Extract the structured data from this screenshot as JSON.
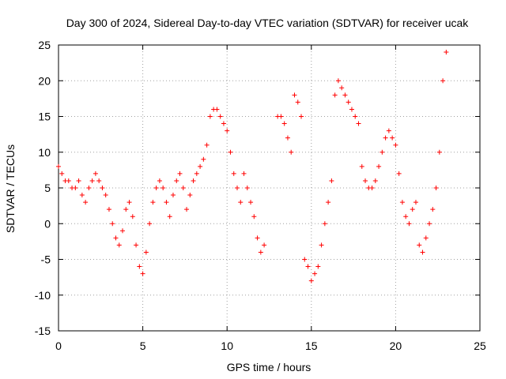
{
  "chart_data": {
    "type": "scatter",
    "title": "Day 300 of 2024, Sidereal Day-to-day VTEC variation (SDTVAR) for receiver ucak",
    "xlabel": "GPS time / hours",
    "ylabel": "SDTVAR / TECUs",
    "xlim": [
      0,
      25
    ],
    "ylim": [
      -15,
      25
    ],
    "xticks": [
      "0",
      "5",
      "10",
      "15",
      "20",
      "25"
    ],
    "yticks": [
      "-15",
      "-10",
      "-5",
      "0",
      "5",
      "10",
      "15",
      "20",
      "25"
    ],
    "grid": true,
    "marker": "+",
    "color": "#ff0000",
    "series": [
      {
        "name": "SDTVAR",
        "x": [
          0.0,
          0.2,
          0.4,
          0.6,
          0.8,
          1.0,
          1.2,
          1.4,
          1.6,
          1.8,
          2.0,
          2.2,
          2.4,
          2.6,
          2.8,
          3.0,
          3.2,
          3.4,
          3.6,
          3.8,
          4.0,
          4.2,
          4.4,
          4.6,
          4.8,
          5.0,
          5.2,
          5.4,
          5.6,
          5.8,
          6.0,
          6.2,
          6.4,
          6.6,
          6.8,
          7.0,
          7.2,
          7.4,
          7.6,
          7.8,
          8.0,
          8.2,
          8.4,
          8.6,
          8.8,
          9.0,
          9.2,
          9.4,
          9.6,
          9.8,
          10.0,
          10.2,
          10.4,
          10.6,
          10.8,
          11.0,
          11.2,
          11.4,
          11.6,
          11.8,
          12.0,
          12.2,
          13.0,
          13.2,
          13.4,
          13.6,
          13.8,
          14.0,
          14.2,
          14.4,
          14.6,
          14.8,
          15.0,
          15.2,
          15.4,
          15.6,
          15.8,
          16.0,
          16.2,
          16.4,
          16.6,
          16.8,
          17.0,
          17.2,
          17.4,
          17.6,
          17.8,
          18.0,
          18.2,
          18.4,
          18.6,
          18.8,
          19.0,
          19.2,
          19.4,
          19.6,
          19.8,
          20.0,
          20.2,
          20.4,
          20.6,
          20.8,
          21.0,
          21.2,
          21.4,
          21.6,
          21.8,
          22.0,
          22.2,
          22.4,
          22.6,
          22.8,
          23.0
        ],
        "y": [
          8,
          7,
          6,
          6,
          5,
          5,
          6,
          4,
          3,
          5,
          6,
          7,
          6,
          5,
          4,
          2,
          0,
          -2,
          -3,
          -1,
          2,
          3,
          1,
          -3,
          -6,
          -7,
          -4,
          0,
          3,
          5,
          6,
          5,
          3,
          1,
          4,
          6,
          7,
          5,
          2,
          4,
          6,
          7,
          8,
          9,
          11,
          15,
          16,
          16,
          15,
          14,
          13,
          10,
          7,
          5,
          3,
          7,
          5,
          3,
          1,
          -2,
          -4,
          -3,
          15,
          15,
          14,
          12,
          10,
          18,
          17,
          15,
          -5,
          -6,
          -8,
          -7,
          -6,
          -3,
          0,
          3,
          6,
          18,
          20,
          19,
          18,
          17,
          16,
          15,
          14,
          8,
          6,
          5,
          5,
          6,
          8,
          10,
          12,
          13,
          12,
          11,
          7,
          3,
          1,
          0,
          2,
          3,
          -3,
          -4,
          -2,
          0,
          2,
          5,
          10,
          20,
          24
        ]
      }
    ]
  }
}
